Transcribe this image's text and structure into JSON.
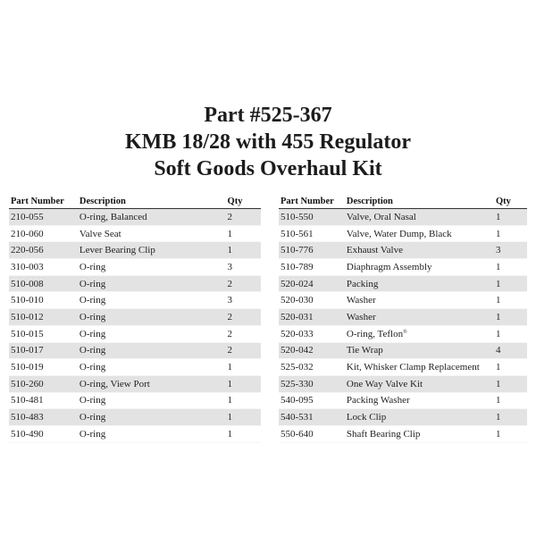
{
  "title": {
    "line1": "Part #525-367",
    "line2": "KMB 18/28 with 455 Regulator",
    "line3": "Soft Goods Overhaul Kit"
  },
  "headers": {
    "part_number": "Part Number",
    "description": "Description",
    "qty": "Qty"
  },
  "left_table": [
    {
      "part": "210-055",
      "desc": "O-ring, Balanced",
      "qty": "2"
    },
    {
      "part": "210-060",
      "desc": "Valve Seat",
      "qty": "1"
    },
    {
      "part": "220-056",
      "desc": "Lever Bearing Clip",
      "qty": "1"
    },
    {
      "part": "310-003",
      "desc": "O-ring",
      "qty": "3"
    },
    {
      "part": "510-008",
      "desc": "O-ring",
      "qty": "2"
    },
    {
      "part": "510-010",
      "desc": "O-ring",
      "qty": "3"
    },
    {
      "part": "510-012",
      "desc": "O-ring",
      "qty": "2"
    },
    {
      "part": "510-015",
      "desc": "O-ring",
      "qty": "2"
    },
    {
      "part": "510-017",
      "desc": "O-ring",
      "qty": "2"
    },
    {
      "part": "510-019",
      "desc": "O-ring",
      "qty": "1"
    },
    {
      "part": "510-260",
      "desc": "O-ring, View Port",
      "qty": "1"
    },
    {
      "part": "510-481",
      "desc": "O-ring",
      "qty": "1"
    },
    {
      "part": "510-483",
      "desc": "O-ring",
      "qty": "1"
    },
    {
      "part": "510-490",
      "desc": "O-ring",
      "qty": "1"
    }
  ],
  "right_table": [
    {
      "part": "510-550",
      "desc": "Valve, Oral Nasal",
      "qty": "1"
    },
    {
      "part": "510-561",
      "desc": "Valve, Water Dump, Black",
      "qty": "1"
    },
    {
      "part": "510-776",
      "desc": "Exhaust Valve",
      "qty": "3"
    },
    {
      "part": "510-789",
      "desc": "Diaphragm Assembly",
      "qty": "1"
    },
    {
      "part": "520-024",
      "desc": "Packing",
      "qty": "1"
    },
    {
      "part": "520-030",
      "desc": "Washer",
      "qty": "1"
    },
    {
      "part": "520-031",
      "desc": "Washer",
      "qty": "1"
    },
    {
      "part": "520-033",
      "desc": "O-ring, Teflon",
      "desc_sup": "®",
      "qty": "1"
    },
    {
      "part": "520-042",
      "desc": "Tie Wrap",
      "qty": "4"
    },
    {
      "part": "525-032",
      "desc": "Kit, Whisker Clamp Replacement",
      "qty": "1"
    },
    {
      "part": "525-330",
      "desc": "One Way Valve Kit",
      "qty": "1"
    },
    {
      "part": "540-095",
      "desc": "Packing Washer",
      "qty": "1"
    },
    {
      "part": "540-531",
      "desc": "Lock Clip",
      "qty": "1"
    },
    {
      "part": "550-640",
      "desc": "Shaft Bearing Clip",
      "qty": "1"
    }
  ]
}
